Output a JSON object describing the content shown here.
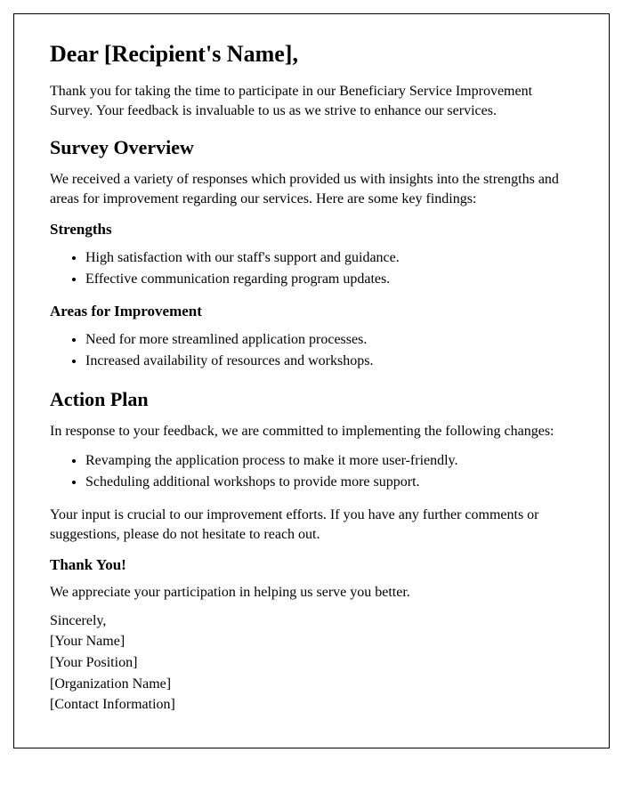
{
  "greeting": "Dear [Recipient's Name],",
  "intro": "Thank you for taking the time to participate in our Beneficiary Service Improvement Survey. Your feedback is invaluable to us as we strive to enhance our services.",
  "overview": {
    "heading": "Survey Overview",
    "text": "We received a variety of responses which provided us with insights into the strengths and areas for improvement regarding our services. Here are some key findings:",
    "strengths_heading": "Strengths",
    "strengths": [
      "High satisfaction with our staff's support and guidance.",
      "Effective communication regarding program updates."
    ],
    "improvements_heading": "Areas for Improvement",
    "improvements": [
      "Need for more streamlined application processes.",
      "Increased availability of resources and workshops."
    ]
  },
  "action_plan": {
    "heading": "Action Plan",
    "intro": "In response to your feedback, we are committed to implementing the following changes:",
    "items": [
      "Revamping the application process to make it more user-friendly.",
      "Scheduling additional workshops to provide more support."
    ],
    "followup": "Your input is crucial to our improvement efforts. If you have any further comments or suggestions, please do not hesitate to reach out."
  },
  "closing": {
    "heading": "Thank You!",
    "text": "We appreciate your participation in helping us serve you better.",
    "signoff": "Sincerely,",
    "name": "[Your Name]",
    "position": "[Your Position]",
    "organization": "[Organization Name]",
    "contact": "[Contact Information]"
  }
}
